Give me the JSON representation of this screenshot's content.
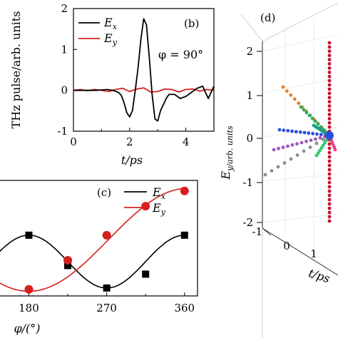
{
  "chart_data": [
    {
      "panel": "(b)",
      "type": "line",
      "annotation": "φ = 90°",
      "xlabel": "t/ps",
      "ylabel": "THz pulse/arb. units",
      "xlim": [
        0,
        5
      ],
      "ylim": [
        -1,
        2
      ],
      "xticks": [
        0,
        2,
        4
      ],
      "yticks": [
        -1,
        0,
        1,
        2
      ],
      "legend": "top-left",
      "series": [
        {
          "name": "E_x",
          "color": "#000000",
          "x": [
            0,
            0.2,
            0.4,
            0.6,
            0.8,
            1.0,
            1.2,
            1.4,
            1.6,
            1.7,
            1.8,
            1.9,
            2.0,
            2.1,
            2.2,
            2.3,
            2.4,
            2.5,
            2.6,
            2.7,
            2.8,
            2.9,
            3.0,
            3.1,
            3.2,
            3.3,
            3.4,
            3.6,
            3.8,
            4.0,
            4.2,
            4.4,
            4.6,
            4.8,
            5.0
          ],
          "y": [
            0,
            0,
            0,
            0,
            0,
            0.01,
            0.02,
            0.0,
            -0.05,
            -0.12,
            -0.3,
            -0.55,
            -0.65,
            -0.5,
            0.0,
            0.55,
            1.25,
            1.75,
            1.6,
            0.8,
            -0.1,
            -0.7,
            -0.75,
            -0.5,
            -0.35,
            -0.2,
            -0.1,
            -0.1,
            -0.2,
            -0.15,
            -0.05,
            0.05,
            0.1,
            -0.2,
            0.1
          ]
        },
        {
          "name": "E_y",
          "color": "#d62020",
          "x": [
            0,
            0.25,
            0.5,
            0.75,
            1.0,
            1.25,
            1.5,
            1.75,
            2.0,
            2.25,
            2.5,
            2.75,
            3.0,
            3.25,
            3.5,
            3.75,
            4.0,
            4.25,
            4.5,
            4.75,
            5.0
          ],
          "y": [
            0.0,
            0.02,
            -0.01,
            0.02,
            0.0,
            -0.03,
            0.02,
            0.05,
            -0.03,
            0.03,
            0.06,
            -0.04,
            -0.03,
            0.03,
            0.02,
            -0.04,
            0.02,
            0.03,
            -0.02,
            0.02,
            0.0
          ]
        }
      ],
      "legend_entries": [
        "E_x",
        "E_y"
      ]
    },
    {
      "panel": "(c)",
      "type": "scatter",
      "xlabel": "φ/(°)",
      "xlim": [
        145,
        375
      ],
      "xticks": [
        180,
        270,
        360
      ],
      "legend": "top-right",
      "series": [
        {
          "name": "E_x",
          "color": "#000000",
          "marker": "square",
          "x": [
            180,
            225,
            270,
            315,
            360
          ],
          "y": [
            0.62,
            0.16,
            -0.18,
            0.03,
            0.62
          ]
        },
        {
          "name": "E_y",
          "color": "#d62020",
          "marker": "circle",
          "x": [
            180,
            225,
            270,
            315,
            360
          ],
          "y": [
            -0.2,
            0.24,
            0.62,
            1.06,
            1.29
          ]
        }
      ],
      "legend_entries": [
        "E_x",
        "E_y"
      ]
    },
    {
      "panel": "(d)",
      "type": "scatter",
      "ylabel": "E_y/arb. units",
      "xlabel": "t/ps",
      "yticks": [
        -2,
        -1,
        0,
        1,
        2
      ],
      "xticks": [
        0,
        1
      ],
      "x_extra_tick": "-1"
    }
  ]
}
